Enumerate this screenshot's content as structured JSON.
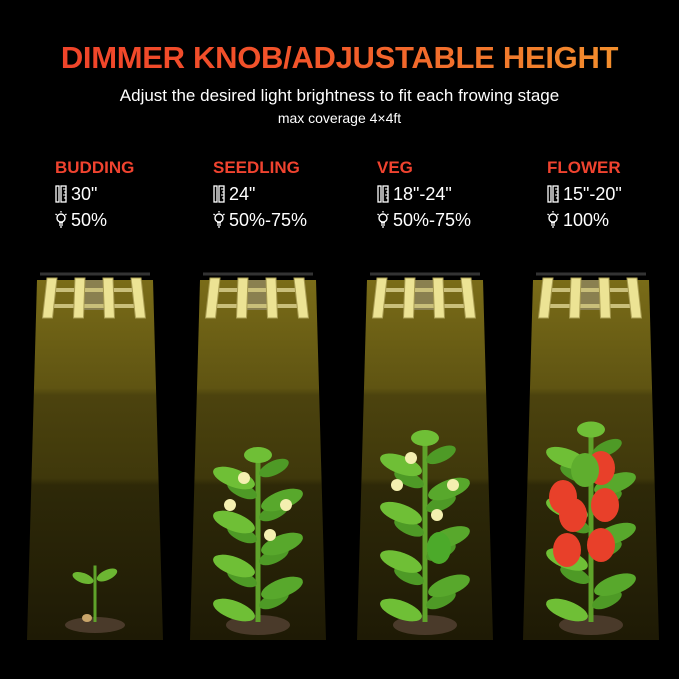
{
  "title": "DIMMER KNOB/ADJUSTABLE HEIGHT",
  "subtitle": "Adjust the desired light brightness to fit each frowing stage",
  "coverage": "max coverage 4×4ft",
  "colors": {
    "title_start": "#f0402a",
    "title_end": "#f39a2e",
    "stage_label": "#f0432f",
    "light": "#e8df8a",
    "beam": "#6b5e12"
  },
  "stages": [
    {
      "name": "BUDDING",
      "height": "30\"",
      "brightness": "50%",
      "height_icon": "ruler-icon",
      "brightness_icon": "light-bulb-icon"
    },
    {
      "name": "SEEDLING",
      "height": "24\"",
      "brightness": "50%-75%",
      "height_icon": "ruler-icon",
      "brightness_icon": "light-bulb-icon"
    },
    {
      "name": "VEG",
      "height": "18\"-24\"",
      "brightness": "50%-75%",
      "height_icon": "ruler-icon",
      "brightness_icon": "light-bulb-icon"
    },
    {
      "name": "FLOWER",
      "height": "15\"-20\"",
      "brightness": "100%",
      "height_icon": "ruler-icon",
      "brightness_icon": "light-bulb-icon"
    }
  ]
}
